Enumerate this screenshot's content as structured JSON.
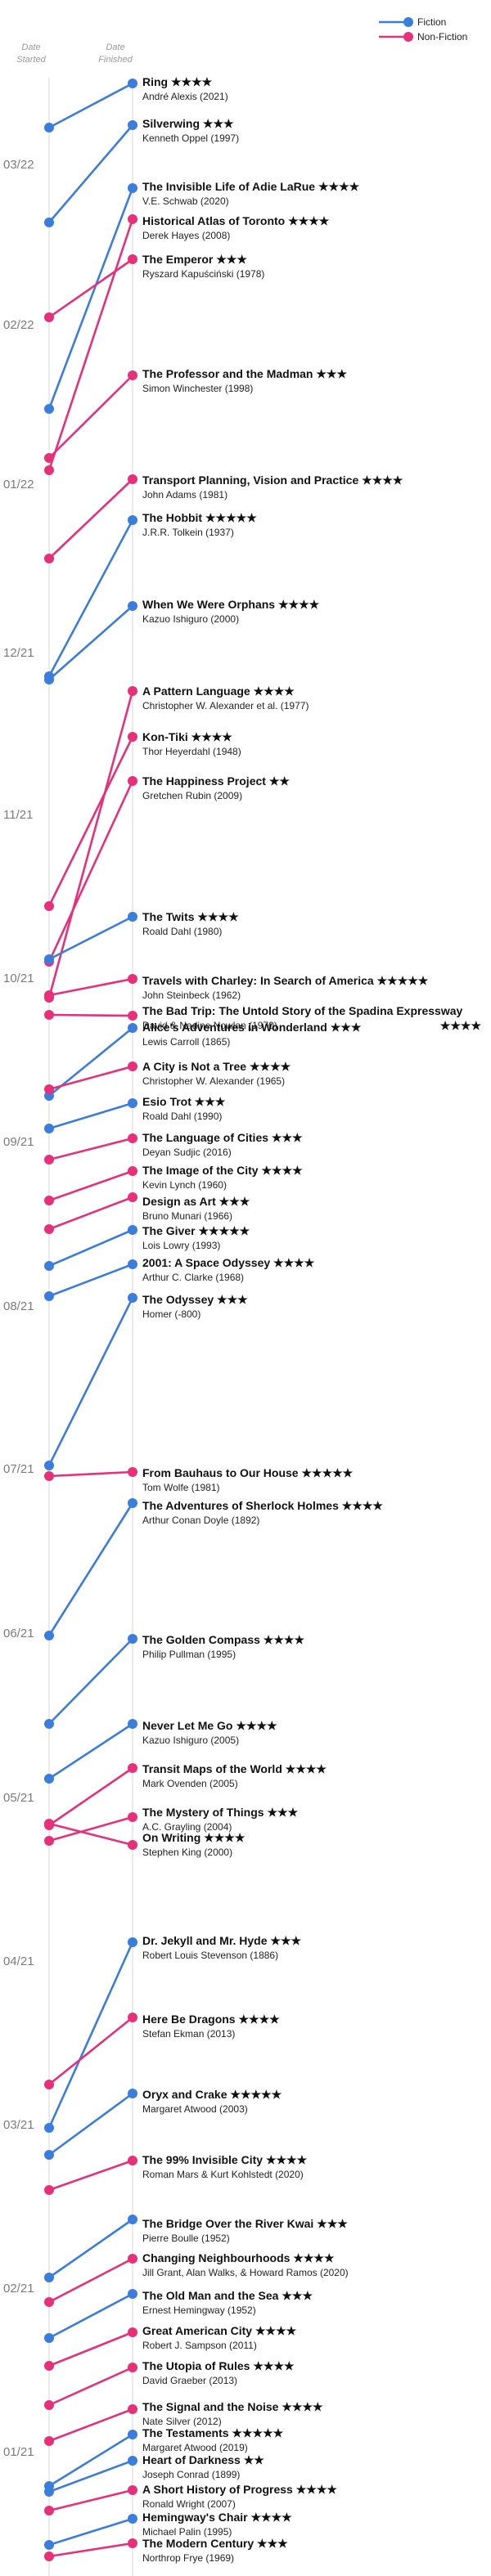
{
  "chart_data": {
    "type": "line",
    "axis_headers": {
      "started": [
        "Date",
        "Started"
      ],
      "finished": [
        "Date",
        "Finished"
      ]
    },
    "month_labels": [
      "03/22",
      "02/22",
      "01/22",
      "12/21",
      "11/21",
      "10/21",
      "09/21",
      "08/21",
      "07/21",
      "06/21",
      "05/21",
      "04/21",
      "03/21",
      "02/21",
      "01/21"
    ],
    "legend": [
      {
        "name": "Fiction",
        "color": "#3b7ddd"
      },
      {
        "name": "Non-Fiction",
        "color": "#e8307a"
      }
    ],
    "books": [
      {
        "title": "Ring",
        "stars": "★★★★",
        "author": "André Alexis (2021)",
        "category": "Fiction",
        "started": "03/2022",
        "finished": "04/2022"
      },
      {
        "title": "Silverwing",
        "stars": "★★★",
        "author": "Kenneth Oppel (1997)",
        "category": "Fiction",
        "started": "03/2022",
        "finished": "04/2022"
      },
      {
        "title": "The Invisible Life of Adie LaRue",
        "stars": "★★★★",
        "author": "V.E. Schwab (2020)",
        "category": "Fiction",
        "started": "01/2022",
        "finished": "03/2022"
      },
      {
        "title": "Historical Atlas of Toronto",
        "stars": "★★★★",
        "author": "Derek Hayes (2008)",
        "category": "Non-Fiction",
        "started": "01/2022",
        "finished": "03/2022"
      },
      {
        "title": "The Emperor",
        "stars": "★★★",
        "author": "Ryszard Kapuściński (1978)",
        "category": "Non-Fiction",
        "started": "02/2022",
        "finished": "03/2022"
      },
      {
        "title": "The Professor and the Madman",
        "stars": "★★★",
        "author": "Simon Winchester (1998)",
        "category": "Non-Fiction",
        "started": "01/2022",
        "finished": "02/2022"
      },
      {
        "title": "Transport Planning, Vision and Practice",
        "stars": "★★★★",
        "author": "John Adams (1981)",
        "category": "Non-Fiction",
        "started": "12/2021",
        "finished": "01/2022"
      },
      {
        "title": "The Hobbit",
        "stars": "★★★★★",
        "author": "J.R.R. Tolkein (1937)",
        "category": "Fiction",
        "started": "12/2021",
        "finished": "01/2022"
      },
      {
        "title": "When We Were Orphans",
        "stars": "★★★★",
        "author": "Kazuo Ishiguro (2000)",
        "category": "Fiction",
        "started": "12/2021",
        "finished": "12/2021"
      },
      {
        "title": "A Pattern Language",
        "stars": "★★★★",
        "author": "Christopher W. Alexander et al. (1977)",
        "category": "Non-Fiction",
        "started": "09/2021",
        "finished": "12/2021"
      },
      {
        "title": "Kon-Tiki",
        "stars": "★★★★",
        "author": "Thor Heyerdahl (1948)",
        "category": "Non-Fiction",
        "started": "09/2021",
        "finished": "11/2021"
      },
      {
        "title": "The Happiness Project",
        "stars": "★★",
        "author": "Gretchen Rubin (2009)",
        "category": "Non-Fiction",
        "started": "09/2021",
        "finished": "11/2021"
      },
      {
        "title": "The Twits",
        "stars": "★★★★",
        "author": "Roald Dahl (1980)",
        "category": "Fiction",
        "started": "10/2021",
        "finished": "10/2021"
      },
      {
        "title": "Travels with Charley: In Search of America",
        "stars": "★★★★★",
        "author": "John Steinbeck (1962)",
        "category": "Non-Fiction",
        "started": "10/2021",
        "finished": "10/2021"
      },
      {
        "title": "The Bad Trip: The Untold Story of the Spadina Expressway",
        "stars": "★★★★",
        "author": "David & Nadine Nowlan (1970)",
        "category": "Non-Fiction",
        "started": "10/2021",
        "finished": "10/2021"
      },
      {
        "title": "Alice's Adventures in Wonderland",
        "stars": "★★★",
        "author": "Lewis Carroll (1865)",
        "category": "Fiction",
        "started": "09/2021",
        "finished": "09/2021"
      },
      {
        "title": "A City is Not a Tree",
        "stars": "★★★★",
        "author": "Christopher W. Alexander (1965)",
        "category": "Non-Fiction",
        "started": "09/2021",
        "finished": "09/2021"
      },
      {
        "title": "Esio Trot",
        "stars": "★★★",
        "author": "Roald Dahl (1990)",
        "category": "Fiction",
        "started": "09/2021",
        "finished": "09/2021"
      },
      {
        "title": "The Language of Cities",
        "stars": "★★★",
        "author": "Deyan Sudjic (2016)",
        "category": "Non-Fiction",
        "started": "09/2021",
        "finished": "09/2021"
      },
      {
        "title": "The Image of the City",
        "stars": "★★★★",
        "author": "Kevin Lynch (1960)",
        "category": "Non-Fiction",
        "started": "08/2021",
        "finished": "09/2021"
      },
      {
        "title": "Design as Art",
        "stars": "★★★",
        "author": "Bruno Munari (1966)",
        "category": "Non-Fiction",
        "started": "08/2021",
        "finished": "08/2021"
      },
      {
        "title": "The Giver",
        "stars": "★★★★★",
        "author": "Lois Lowry (1993)",
        "category": "Fiction",
        "started": "08/2021",
        "finished": "08/2021"
      },
      {
        "title": "2001: A Space Odyssey",
        "stars": "★★★★",
        "author": "Arthur C. Clarke (1968)",
        "category": "Fiction",
        "started": "08/2021",
        "finished": "08/2021"
      },
      {
        "title": "The Odyssey",
        "stars": "★★★",
        "author": "Homer (-800)",
        "category": "Fiction",
        "started": "07/2021",
        "finished": "08/2021"
      },
      {
        "title": "From Bauhaus to Our House",
        "stars": "★★★★★",
        "author": "Tom Wolfe (1981)",
        "category": "Non-Fiction",
        "started": "07/2021",
        "finished": "07/2021"
      },
      {
        "title": "The Adventures of Sherlock Holmes",
        "stars": "★★★★",
        "author": "Arthur Conan Doyle (1892)",
        "category": "Fiction",
        "started": "06/2021",
        "finished": "07/2021"
      },
      {
        "title": "The Golden Compass",
        "stars": "★★★★",
        "author": "Philip Pullman (1995)",
        "category": "Fiction",
        "started": "05/2021",
        "finished": "06/2021"
      },
      {
        "title": "Never Let Me Go",
        "stars": "★★★★",
        "author": "Kazuo Ishiguro (2005)",
        "category": "Fiction",
        "started": "05/2021",
        "finished": "05/2021"
      },
      {
        "title": "Transit Maps of the World",
        "stars": "★★★★",
        "author": "Mark Ovenden (2005)",
        "category": "Non-Fiction",
        "started": "05/2021",
        "finished": "05/2021"
      },
      {
        "title": "The Mystery of Things",
        "stars": "★★★",
        "author": "A.C. Grayling (2004)",
        "category": "Non-Fiction",
        "started": "05/2021",
        "finished": "05/2021"
      },
      {
        "title": "On Writing",
        "stars": "★★★★",
        "author": "Stephen King (2000)",
        "category": "Non-Fiction",
        "started": "05/2021",
        "finished": "05/2021"
      },
      {
        "title": "Dr. Jekyll and Mr. Hyde",
        "stars": "★★★",
        "author": "Robert Louis Stevenson (1886)",
        "category": "Fiction",
        "started": "05/2021",
        "finished": "05/2021"
      },
      {
        "title": "Here Be Dragons",
        "stars": "★★★★",
        "author": "Stefan Ekman (2013)",
        "category": "Non-Fiction",
        "started": "03/2021",
        "finished": "04/2021"
      },
      {
        "title": "Oryx and Crake",
        "stars": "★★★★★",
        "author": "Margaret Atwood (2003)",
        "category": "Fiction",
        "started": "03/2021",
        "finished": "04/2021"
      },
      {
        "title": "The 99% Invisible City",
        "stars": "★★★★",
        "author": "Roman Mars & Kurt Kohlstedt (2020)",
        "category": "Non-Fiction",
        "started": "02/2021",
        "finished": "03/2021"
      },
      {
        "title": "The Bridge Over the River Kwai",
        "stars": "★★★",
        "author": "Pierre Boulle (1952)",
        "category": "Fiction",
        "started": "03/2021",
        "finished": "03/2021"
      },
      {
        "title": "Changing Neighbourhoods",
        "stars": "★★★★",
        "author": "Jill Grant, Alan Walks, & Howard Ramos (2020)",
        "category": "Non-Fiction",
        "started": "02/2021",
        "finished": "02/2021"
      },
      {
        "title": "The Old Man and the Sea",
        "stars": "★★★",
        "author": "Ernest Hemingway (1952)",
        "category": "Fiction",
        "started": "02/2021",
        "finished": "02/2021"
      },
      {
        "title": "Great American City",
        "stars": "★★★★",
        "author": "Robert J. Sampson (2011)",
        "category": "Non-Fiction",
        "started": "02/2021",
        "finished": "02/2021"
      },
      {
        "title": "The Utopia of Rules",
        "stars": "★★★★",
        "author": "David Graeber (2013)",
        "category": "Non-Fiction",
        "started": "02/2021",
        "finished": "02/2021"
      },
      {
        "title": "The Signal and the Noise",
        "stars": "★★★★",
        "author": "Nate Silver (2012)",
        "category": "Non-Fiction",
        "started": "01/2021",
        "finished": "02/2021"
      },
      {
        "title": "The Testaments",
        "stars": "★★★★★",
        "author": "Margaret Atwood (2019)",
        "category": "Fiction",
        "started": "01/2021",
        "finished": "01/2021"
      },
      {
        "title": "Heart of Darkness",
        "stars": "★★",
        "author": "Joseph Conrad (1899)",
        "category": "Fiction",
        "started": "01/2021",
        "finished": "01/2021"
      },
      {
        "title": "A Short History of Progress",
        "stars": "★★★★",
        "author": "Ronald Wright (2007)",
        "category": "Non-Fiction",
        "started": "01/2021",
        "finished": "01/2021"
      },
      {
        "title": "Hemingway's Chair",
        "stars": "★★★★",
        "author": "Michael Palin (1995)",
        "category": "Fiction",
        "started": "01/2021",
        "finished": "01/2021"
      },
      {
        "title": "The Modern Century",
        "stars": "★★★",
        "author": "Northrop Frye (1969)",
        "category": "Non-Fiction",
        "started": "01/2021",
        "finished": "01/2021"
      }
    ]
  }
}
